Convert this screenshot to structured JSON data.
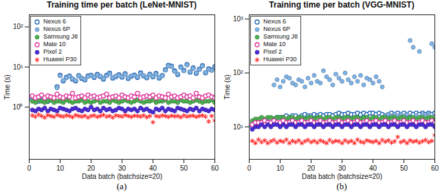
{
  "chart_data": [
    {
      "type": "scatter",
      "title": "Training time per batch (LeNet-MNIST)",
      "caption": "(a)",
      "x_label": "Data batch (batchsize=20)",
      "y_label": "Time (s)",
      "xlim": [
        0,
        60
      ],
      "xticks": [
        0,
        10,
        20,
        30,
        40,
        50,
        60
      ],
      "ylim": [
        0.05,
        200
      ],
      "yticks": [
        {
          "value": 1,
          "label": "10⁰"
        },
        {
          "value": 10,
          "label": "10¹"
        },
        {
          "value": 100,
          "label": "10²"
        }
      ],
      "log": "y",
      "grid": false,
      "legend": "upper left",
      "x": [
        1,
        2,
        3,
        4,
        5,
        6,
        7,
        8,
        9,
        10,
        11,
        12,
        13,
        14,
        15,
        16,
        17,
        18,
        19,
        20,
        21,
        22,
        23,
        24,
        25,
        26,
        27,
        28,
        29,
        30,
        31,
        32,
        33,
        34,
        35,
        36,
        37,
        38,
        39,
        40,
        41,
        42,
        43,
        44,
        45,
        46,
        47,
        48,
        49,
        50,
        51,
        52,
        53,
        54,
        55,
        56,
        57,
        58,
        59,
        60
      ],
      "series": [
        {
          "name": "Nexus 6",
          "color": "#1a5fb4",
          "marker": "open circle",
          "values": [
            1.6,
            1.5,
            1.4,
            1.5,
            1.6,
            1.4,
            1.5,
            1.5,
            3.2,
            6.2,
            4.5,
            5.5,
            6.0,
            5.0,
            4.5,
            6.1,
            5.2,
            4.8,
            6.0,
            6.2,
            5.5,
            6.5,
            5.8,
            5.0,
            6.2,
            7.0,
            5.3,
            5.8,
            6.4,
            5.6,
            6.8,
            5.2,
            5.9,
            6.3,
            5.5,
            7.1,
            6.0,
            5.4,
            6.6,
            5.7,
            6.9,
            5.3,
            6.1,
            8.5,
            11.0,
            10.5,
            8.0,
            6.5,
            10.0,
            8.2,
            11.5,
            7.5,
            9.5,
            7.0,
            8.8,
            10.8,
            7.2,
            9.0,
            8.4,
            10.2
          ]
        },
        {
          "name": "Nexus 6P",
          "color": "#7fb3e6",
          "marker": "circle",
          "values": [
            1.5,
            1.6,
            1.4,
            1.4,
            1.5,
            1.5,
            1.6,
            1.4,
            3.0,
            6.0,
            4.6,
            5.4,
            5.9,
            5.1,
            4.6,
            6.0,
            5.3,
            4.9,
            5.8,
            6.1,
            5.6,
            6.3,
            5.9,
            5.1,
            6.0,
            6.8,
            5.4,
            5.9,
            6.2,
            5.7,
            6.6,
            5.3,
            6.0,
            6.1,
            5.6,
            6.9,
            6.1,
            5.5,
            6.4,
            5.8,
            6.7,
            5.4,
            6.0,
            8.3,
            10.6,
            10.2,
            7.8,
            6.6,
            9.7,
            8.0,
            11.2,
            7.6,
            9.2,
            7.1,
            8.6,
            10.5,
            7.3,
            8.8,
            8.2,
            9.9
          ]
        },
        {
          "name": "Samsung J8",
          "color": "#4caf50",
          "marker": "circle",
          "values": [
            1.4,
            1.3,
            1.5,
            1.4,
            1.3,
            1.4,
            1.5,
            1.3,
            1.4,
            1.4,
            1.3,
            1.5,
            1.4,
            1.3,
            1.4,
            1.4,
            1.5,
            1.3,
            1.4,
            1.3,
            1.4,
            1.5,
            1.3,
            1.4,
            1.4,
            1.3,
            1.5,
            1.4,
            1.3,
            1.4,
            1.5,
            1.4,
            1.3,
            1.4,
            1.5,
            1.4,
            1.3,
            1.4,
            1.4,
            1.5,
            1.3,
            1.4,
            1.4,
            1.5,
            1.3,
            1.4,
            1.4,
            1.3,
            1.5,
            1.4,
            1.4,
            1.3,
            1.4,
            1.5,
            1.4,
            1.3,
            1.4,
            1.4,
            1.5,
            1.3
          ]
        },
        {
          "name": "Mate 10",
          "color": "#e0309a",
          "marker": "open circle",
          "values": [
            1.9,
            1.7,
            1.8,
            2.0,
            1.7,
            1.9,
            1.8,
            1.7,
            2.1,
            1.8,
            1.7,
            1.9,
            1.8,
            2.2,
            1.7,
            1.8,
            1.9,
            1.7,
            2.0,
            1.8,
            1.9,
            1.7,
            1.8,
            1.9,
            2.1,
            1.7,
            1.8,
            1.9,
            1.7,
            2.0,
            1.8,
            1.7,
            1.9,
            1.8,
            2.2,
            1.7,
            1.8,
            1.9,
            1.8,
            2.0,
            1.7,
            1.9,
            1.8,
            1.7,
            2.1,
            1.8,
            1.9,
            1.7,
            1.8,
            2.0,
            1.8,
            1.9,
            1.7,
            2.2,
            1.8,
            1.7,
            1.9,
            2.0,
            1.8,
            1.7
          ]
        },
        {
          "name": "Pixel 2",
          "color": "#4a2bd6",
          "marker": "circle",
          "values": [
            0.85,
            0.8,
            0.9,
            0.85,
            0.95,
            0.8,
            0.9,
            0.85,
            0.8,
            0.95,
            0.9,
            0.85,
            0.8,
            0.9,
            0.95,
            0.85,
            0.8,
            0.9,
            0.85,
            1.0,
            0.85,
            0.9,
            0.8,
            0.95,
            0.85,
            0.9,
            0.8,
            0.85,
            0.95,
            0.9,
            0.8,
            0.9,
            0.85,
            0.9,
            0.8,
            0.95,
            0.85,
            0.9,
            0.8,
            0.75,
            0.9,
            0.85,
            0.95,
            0.8,
            0.9,
            0.85,
            0.8,
            0.95,
            0.9,
            0.85,
            0.8,
            0.9,
            0.85,
            0.95,
            0.8,
            0.9,
            0.85,
            0.8,
            0.9,
            0.85
          ]
        },
        {
          "name": "Huawei P30",
          "color": "#ff2a2a",
          "marker": "asterisk",
          "values": [
            0.62,
            0.58,
            0.65,
            0.6,
            0.55,
            0.63,
            0.6,
            0.57,
            0.64,
            0.6,
            0.58,
            0.62,
            0.6,
            0.56,
            0.63,
            0.6,
            0.58,
            0.61,
            0.55,
            0.6,
            0.62,
            0.57,
            0.6,
            0.64,
            0.58,
            0.6,
            0.55,
            0.62,
            0.6,
            0.58,
            0.63,
            0.6,
            0.57,
            0.61,
            0.6,
            0.58,
            0.62,
            0.56,
            0.6,
            0.42,
            0.6,
            0.58,
            0.62,
            0.6,
            0.57,
            0.61,
            0.59,
            0.6,
            0.56,
            0.62,
            0.58,
            0.6,
            0.61,
            0.57,
            0.6,
            0.62,
            0.58,
            0.44,
            0.6,
            0.46
          ]
        }
      ]
    },
    {
      "type": "scatter",
      "title": "Training time per batch (VGG-MNIST)",
      "caption": "(b)",
      "x_label": "Data batch (batchsize=20)",
      "y_label": "Time (s)",
      "xlim": [
        0,
        60
      ],
      "xticks": [
        0,
        10,
        20,
        30,
        40,
        50,
        60
      ],
      "ylim": [
        2.5,
        1200
      ],
      "yticks": [
        {
          "value": 10,
          "label": "10¹"
        },
        {
          "value": 100,
          "label": "10²"
        },
        {
          "value": 1000,
          "label": "10³"
        }
      ],
      "log": "y",
      "grid": false,
      "legend": "upper left",
      "x": [
        1,
        2,
        3,
        4,
        5,
        6,
        7,
        8,
        9,
        10,
        11,
        12,
        13,
        14,
        15,
        16,
        17,
        18,
        19,
        20,
        21,
        22,
        23,
        24,
        25,
        26,
        27,
        28,
        29,
        30,
        31,
        32,
        33,
        34,
        35,
        36,
        37,
        38,
        39,
        40,
        41,
        42,
        43,
        44,
        45,
        46,
        47,
        48,
        49,
        50,
        51,
        52,
        53,
        54,
        55,
        56,
        57,
        58,
        59,
        60
      ],
      "series": [
        {
          "name": "Nexus 6",
          "color": "#1a5fb4",
          "marker": "open circle",
          "values": [
            10,
            11,
            12,
            12,
            13,
            13,
            14,
            14,
            15,
            15,
            15,
            16,
            15,
            16,
            16,
            15,
            16,
            17,
            16,
            16,
            17,
            16,
            17,
            16,
            17,
            17,
            16,
            17,
            18,
            17,
            17,
            18,
            17,
            17,
            18,
            17,
            18,
            17,
            18,
            18,
            17,
            18,
            17,
            16,
            17,
            18,
            17,
            18,
            17,
            18,
            17,
            18,
            17,
            18,
            17,
            18,
            17,
            18,
            17,
            18
          ]
        },
        {
          "name": "Nexus 6P",
          "color": "#7fb3e6",
          "marker": "circle",
          "values": [
            12,
            12,
            13,
            12,
            13,
            13,
            12,
            60,
            75,
            55,
            70,
            85,
            80,
            65,
            60,
            75,
            70,
            55,
            80,
            65,
            90,
            70,
            65,
            110,
            85,
            75,
            60,
            95,
            80,
            70,
            100,
            75,
            65,
            85,
            70,
            90,
            60,
            80,
            75,
            65,
            85,
            70,
            55,
            16,
            17,
            16,
            17,
            16,
            17,
            16,
            17,
            400,
            300,
            16,
            250,
            17,
            16,
            17,
            350,
            300
          ]
        },
        {
          "name": "Samsung J8",
          "color": "#4caf50",
          "marker": "circle",
          "values": [
            13,
            14,
            14,
            15,
            14,
            15,
            15,
            14,
            15,
            15,
            15,
            14,
            15,
            15,
            14,
            15,
            15,
            14,
            15,
            15,
            14,
            15,
            15,
            14,
            15,
            15,
            14,
            15,
            15,
            14,
            15,
            15,
            14,
            15,
            15,
            14,
            15,
            15,
            14,
            15,
            15,
            14,
            15,
            15,
            14,
            15,
            15,
            14,
            15,
            15,
            14,
            15,
            15,
            14,
            15,
            15,
            14,
            15,
            15,
            14
          ]
        },
        {
          "name": "Mate 10",
          "color": "#e0309a",
          "marker": "open circle",
          "values": [
            11,
            12,
            12,
            12,
            13,
            12,
            12,
            13,
            12,
            12,
            13,
            12,
            12,
            13,
            12,
            12,
            13,
            12,
            12,
            13,
            12,
            12,
            13,
            12,
            12,
            13,
            12,
            12,
            13,
            12,
            12,
            13,
            12,
            12,
            13,
            12,
            12,
            13,
            12,
            12,
            13,
            12,
            12,
            13,
            12,
            12,
            13,
            12,
            12,
            13,
            12,
            12,
            13,
            12,
            12,
            13,
            12,
            12,
            13,
            12
          ]
        },
        {
          "name": "Pixel 2",
          "color": "#4a2bd6",
          "marker": "circle",
          "values": [
            9,
            10,
            10,
            11,
            10,
            11,
            10,
            11,
            11,
            10,
            11,
            10,
            11,
            11,
            10,
            11,
            11,
            10,
            11,
            11,
            10,
            11,
            11,
            10,
            11,
            11,
            10,
            11,
            11,
            10,
            11,
            11,
            10,
            11,
            11,
            10,
            11,
            11,
            10,
            11,
            11,
            10,
            11,
            11,
            10,
            11,
            11,
            10,
            11,
            11,
            10,
            11,
            11,
            10,
            11,
            11,
            10,
            11,
            11,
            10
          ]
        },
        {
          "name": "Huawei P30",
          "color": "#ff2a2a",
          "marker": "asterisk",
          "values": [
            5.5,
            5.0,
            5.8,
            5.2,
            5.6,
            5.0,
            5.4,
            5.7,
            5.1,
            5.5,
            5.3,
            5.8,
            5.0,
            5.5,
            5.2,
            5.6,
            5.0,
            5.4,
            5.7,
            5.2,
            5.5,
            5.1,
            5.6,
            5.3,
            5.0,
            5.7,
            5.2,
            5.5,
            5.4,
            5.0,
            5.6,
            5.2,
            5.5,
            5.0,
            5.8,
            5.3,
            5.1,
            5.6,
            5.4,
            5.2,
            5.5,
            5.0,
            5.7,
            5.3,
            5.6,
            5.1,
            5.4,
            6.5,
            5.2,
            5.5,
            5.0,
            5.6,
            5.3,
            5.5,
            5.1,
            5.4,
            5.7,
            5.2,
            5.5,
            7.0
          ]
        }
      ]
    }
  ]
}
